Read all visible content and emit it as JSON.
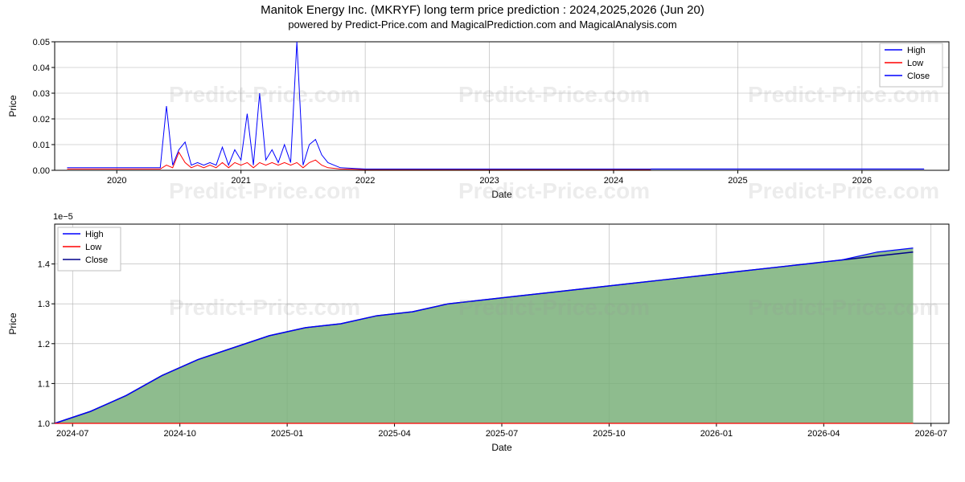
{
  "title": "Manitok Energy Inc. (MKRYF) long term price prediction : 2024,2025,2026 (Jun 20)",
  "subtitle": "powered by Predict-Price.com and MagicalPrediction.com and MagicalAnalysis.com",
  "watermark": "Predict-Price.com",
  "chart1": {
    "type": "line",
    "ylabel": "Price",
    "xlabel": "Date",
    "ylim": [
      0,
      0.05
    ],
    "yticks": [
      0.0,
      0.01,
      0.02,
      0.03,
      0.04,
      0.05
    ],
    "xticks": [
      "2020",
      "2021",
      "2022",
      "2023",
      "2024",
      "2025",
      "2026"
    ],
    "x_range_years": [
      2019.5,
      2026.7
    ],
    "grid_color": "#b0b0b0",
    "background_color": "#ffffff",
    "legend": {
      "position": "upper-right",
      "items": [
        {
          "label": "High",
          "color": "#0000ff"
        },
        {
          "label": "Low",
          "color": "#ff0000"
        },
        {
          "label": "Close",
          "color": "#0000ff"
        }
      ]
    },
    "series": {
      "high": {
        "color": "#0000ff",
        "linewidth": 1,
        "data_years": [
          2019.6,
          2019.8,
          2020.0,
          2020.2,
          2020.35,
          2020.4,
          2020.45,
          2020.5,
          2020.55,
          2020.6,
          2020.65,
          2020.7,
          2020.75,
          2020.8,
          2020.85,
          2020.9,
          2020.95,
          2021.0,
          2021.05,
          2021.1,
          2021.15,
          2021.2,
          2021.25,
          2021.3,
          2021.35,
          2021.4,
          2021.45,
          2021.5,
          2021.55,
          2021.6,
          2021.65,
          2021.7,
          2021.8,
          2022.0,
          2022.5,
          2023.0,
          2023.5,
          2024.0,
          2024.3,
          2024.5,
          2025.0,
          2025.5,
          2026.0,
          2026.5
        ],
        "data_values": [
          0.001,
          0.001,
          0.001,
          0.001,
          0.001,
          0.025,
          0.002,
          0.008,
          0.011,
          0.002,
          0.003,
          0.002,
          0.003,
          0.002,
          0.009,
          0.002,
          0.008,
          0.004,
          0.022,
          0.002,
          0.03,
          0.004,
          0.008,
          0.003,
          0.01,
          0.003,
          0.05,
          0.002,
          0.01,
          0.012,
          0.006,
          0.003,
          0.001,
          0.0005,
          0.0005,
          0.0005,
          0.0005,
          0.0005,
          0.0005,
          0.0005,
          0.0005,
          0.0005,
          0.0005,
          0.0005
        ]
      },
      "low": {
        "color": "#ff0000",
        "linewidth": 1,
        "data_years": [
          2019.6,
          2019.8,
          2020.0,
          2020.2,
          2020.35,
          2020.4,
          2020.45,
          2020.5,
          2020.55,
          2020.6,
          2020.65,
          2020.7,
          2020.75,
          2020.8,
          2020.85,
          2020.9,
          2020.95,
          2021.0,
          2021.05,
          2021.1,
          2021.15,
          2021.2,
          2021.25,
          2021.3,
          2021.35,
          2021.4,
          2021.45,
          2021.5,
          2021.55,
          2021.6,
          2021.65,
          2021.7,
          2021.8,
          2022.0,
          2022.5,
          2023.0,
          2023.5,
          2024.0,
          2024.3
        ],
        "data_values": [
          0.0005,
          0.0005,
          0.0005,
          0.0005,
          0.0005,
          0.002,
          0.001,
          0.007,
          0.003,
          0.001,
          0.002,
          0.001,
          0.002,
          0.001,
          0.003,
          0.001,
          0.003,
          0.002,
          0.003,
          0.001,
          0.003,
          0.002,
          0.003,
          0.002,
          0.003,
          0.002,
          0.003,
          0.001,
          0.003,
          0.004,
          0.002,
          0.001,
          0.0005,
          0.0003,
          0.0003,
          0.0003,
          0.0003,
          0.0003,
          0.0003
        ]
      },
      "close": {
        "color": "#0000ff",
        "linewidth": 1,
        "data_years": [
          2024.3,
          2024.5,
          2025.0,
          2025.5,
          2026.0,
          2026.5
        ],
        "data_values": [
          0.0005,
          0.0005,
          0.0005,
          0.0005,
          0.0005,
          0.0005
        ]
      }
    }
  },
  "chart2": {
    "type": "area",
    "ylabel": "Price",
    "xlabel": "Date",
    "exponent_label": "1e−5",
    "ylim": [
      1.0,
      1.5
    ],
    "yticks": [
      1.0,
      1.1,
      1.2,
      1.3,
      1.4
    ],
    "xticks": [
      "2024-07",
      "2024-10",
      "2025-01",
      "2025-04",
      "2025-07",
      "2025-10",
      "2026-01",
      "2026-04",
      "2026-07"
    ],
    "x_range_months": [
      0,
      25
    ],
    "grid_color": "#b0b0b0",
    "background_color": "#ffffff",
    "fill_color": "#7ab07a",
    "fill_opacity": 0.85,
    "legend": {
      "position": "upper-left",
      "items": [
        {
          "label": "High",
          "color": "#0000ff"
        },
        {
          "label": "Low",
          "color": "#ff0000"
        },
        {
          "label": "Close",
          "color": "#00008b"
        }
      ]
    },
    "series": {
      "high": {
        "color": "#0000ff",
        "linewidth": 1.2,
        "data_months": [
          0,
          1,
          2,
          3,
          4,
          5,
          6,
          7,
          8,
          9,
          10,
          11,
          12,
          13,
          14,
          15,
          16,
          17,
          18,
          19,
          20,
          21,
          22,
          23,
          24
        ],
        "data_values": [
          1.0,
          1.03,
          1.07,
          1.12,
          1.16,
          1.19,
          1.22,
          1.24,
          1.25,
          1.27,
          1.28,
          1.3,
          1.31,
          1.32,
          1.33,
          1.34,
          1.35,
          1.36,
          1.37,
          1.38,
          1.39,
          1.4,
          1.41,
          1.43,
          1.44
        ]
      },
      "low": {
        "color": "#ff0000",
        "linewidth": 1.2,
        "data_months": [
          0,
          24
        ],
        "data_values": [
          0.98,
          0.98
        ]
      },
      "close": {
        "color": "#00008b",
        "linewidth": 1.5,
        "data_months": [
          0,
          1,
          2,
          3,
          4,
          5,
          6,
          7,
          8,
          9,
          10,
          11,
          12,
          13,
          14,
          15,
          16,
          17,
          18,
          19,
          20,
          21,
          22,
          23,
          24
        ],
        "data_values": [
          1.0,
          1.03,
          1.07,
          1.12,
          1.16,
          1.19,
          1.22,
          1.24,
          1.25,
          1.27,
          1.28,
          1.3,
          1.31,
          1.32,
          1.33,
          1.34,
          1.35,
          1.36,
          1.37,
          1.38,
          1.39,
          1.4,
          1.41,
          1.42,
          1.43
        ]
      }
    }
  }
}
